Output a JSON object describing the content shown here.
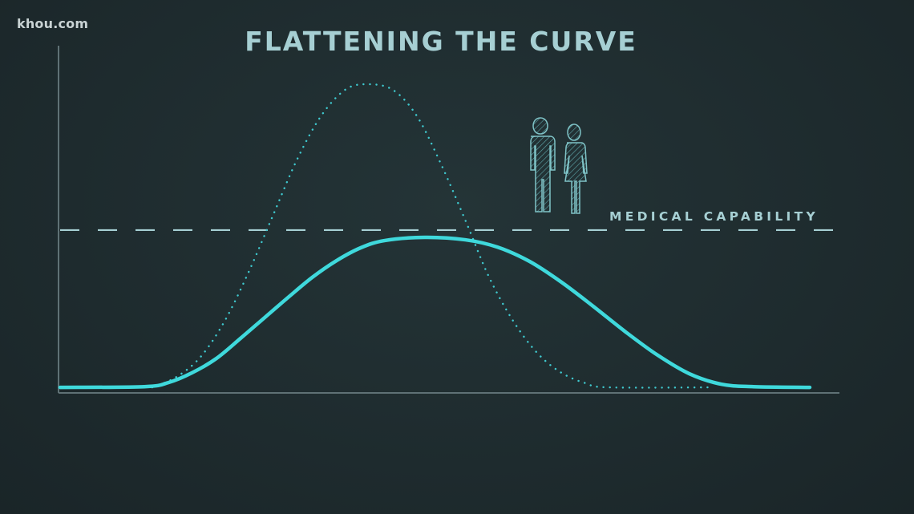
{
  "logo": "khou.com",
  "chart_data": {
    "type": "line",
    "title": "FLATTENING THE CURVE",
    "xlabel": "",
    "ylabel": "",
    "xlim": [
      0,
      100
    ],
    "ylim": [
      0,
      100
    ],
    "grid": false,
    "axis_tick_labels": false,
    "reference_line": {
      "label": "MEDICAL CAPABILITY",
      "y": 46.9,
      "style": "dashed",
      "color": "#a6cfd3"
    },
    "series": [
      {
        "style": "dotted",
        "color": "#3fc9cf",
        "x": [
          12.0,
          15.1,
          18.2,
          21.3,
          24.3,
          27.4,
          30.5,
          33.6,
          36.7,
          39.5,
          42.8,
          45.9,
          49.0,
          52.1,
          55.1,
          58.2,
          61.3,
          64.4,
          67.5,
          70.5,
          83.9
        ],
        "y": [
          1.6,
          4.6,
          10.4,
          20.8,
          34.6,
          50.8,
          67.0,
          79.7,
          87.3,
          88.9,
          87.3,
          79.7,
          65.8,
          49.7,
          33.5,
          20.8,
          11.5,
          5.8,
          2.8,
          1.6,
          1.6
        ]
      },
      {
        "style": "solid",
        "color": "#3fd9dc",
        "x": [
          0.2,
          11.0,
          14.1,
          17.1,
          20.2,
          23.3,
          26.4,
          29.5,
          32.5,
          35.6,
          38.7,
          41.8,
          46.9,
          52.1,
          56.2,
          60.3,
          64.4,
          68.5,
          72.6,
          76.7,
          80.8,
          84.9,
          89.0,
          96.2
        ],
        "y": [
          1.6,
          1.8,
          3.0,
          5.8,
          9.9,
          15.7,
          21.7,
          27.7,
          33.3,
          38.1,
          41.8,
          43.9,
          44.8,
          44.1,
          42.0,
          37.9,
          31.9,
          24.9,
          17.6,
          10.9,
          5.5,
          2.5,
          1.8,
          1.6
        ]
      }
    ]
  },
  "icons": {
    "people": "man-and-woman-icon"
  },
  "colors": {
    "background": "#1f2c2f",
    "axis": "#5f7175",
    "title": "#a6cfd3"
  }
}
